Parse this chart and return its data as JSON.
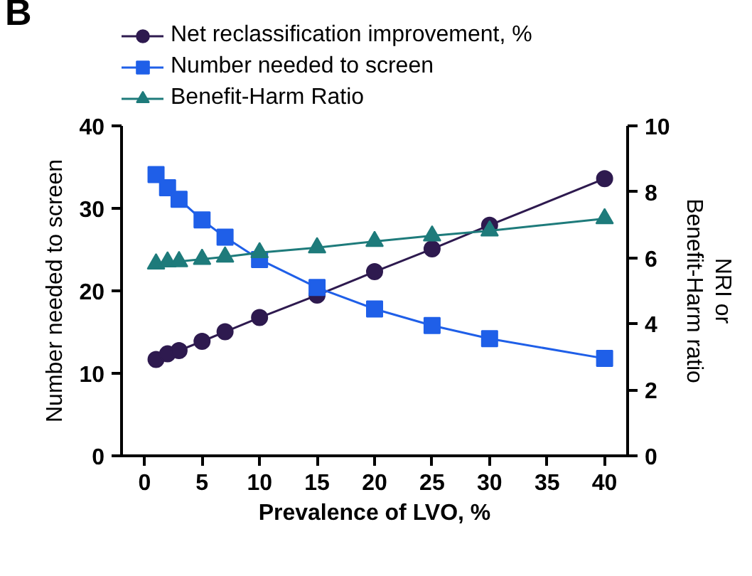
{
  "chart_data": {
    "type": "line",
    "title": "B",
    "xlabel": "Prevalence of LVO, %",
    "ylabel": "Number needed to screen",
    "y2label": "NRI or\nBenefit-Harm ratio",
    "x": [
      1,
      2,
      3,
      5,
      7,
      10,
      15,
      20,
      25,
      30,
      40
    ],
    "series": [
      {
        "name": "Net reclassification improvement, %",
        "color": "#2e1a4f",
        "marker": "circle",
        "axis": "y2",
        "values": [
          2.92,
          3.09,
          3.19,
          3.47,
          3.76,
          4.19,
          4.87,
          5.58,
          6.27,
          6.99,
          8.4
        ]
      },
      {
        "name": "Number needed to screen",
        "color": "#1f5fe8",
        "marker": "square",
        "values": [
          34.1,
          32.5,
          31.1,
          28.6,
          26.5,
          23.8,
          20.4,
          17.8,
          15.8,
          14.2,
          11.8
        ]
      },
      {
        "name": "Benefit-Harm Ratio",
        "color": "#1e7b7b",
        "marker": "triangle",
        "axis": "y2",
        "values": [
          5.82,
          5.88,
          5.89,
          5.96,
          6.03,
          6.16,
          6.31,
          6.5,
          6.67,
          6.82,
          7.19
        ]
      }
    ],
    "xlim": [
      -2,
      42
    ],
    "xticks": [
      0,
      5,
      10,
      15,
      20,
      25,
      30,
      35,
      40
    ],
    "ylim": [
      0,
      40
    ],
    "yticks": [
      0,
      10,
      20,
      30,
      40
    ],
    "y2lim": [
      0,
      10
    ],
    "y2ticks": [
      0,
      2,
      4,
      6,
      8,
      10
    ],
    "grid": false,
    "legend": "top",
    "line_style": "solid"
  }
}
